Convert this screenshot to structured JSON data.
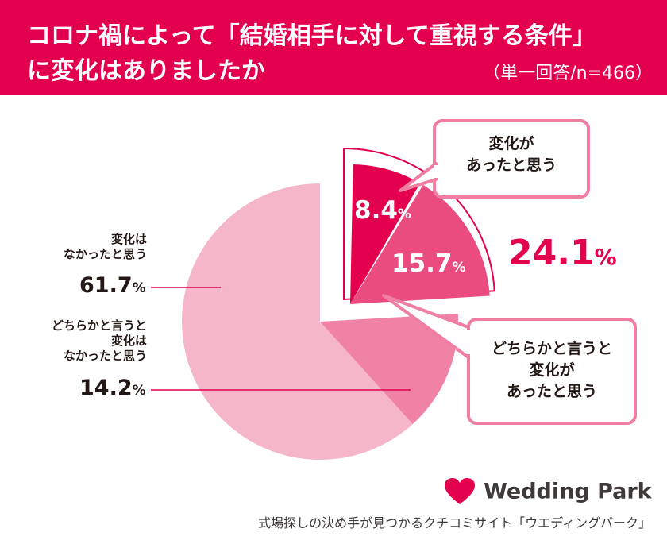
{
  "header": {
    "title_line1": "コロナ禍によって「結婚相手に対して重視する条件」",
    "title_line2": "に変化はありましたか",
    "base_note": "（単一回答/n=466）"
  },
  "chart_data": {
    "type": "pie",
    "unit": "%",
    "slices": [
      {
        "label": "変化はなかったと思う",
        "value": 61.7,
        "color": "#f5b6ca"
      },
      {
        "label": "どちらかと言うと変化はなかったと思う",
        "value": 14.2,
        "color": "#f082a6"
      },
      {
        "label": "どちらかと言うと変化があったと思う",
        "value": 15.7,
        "color": "#ea4c80"
      },
      {
        "label": "変化があったと思う",
        "value": 8.4,
        "color": "#e3004f"
      }
    ],
    "combined_total": {
      "value": 24.1,
      "text": "24.1"
    }
  },
  "labels": {
    "no_change": {
      "line1": "変化は",
      "line2": "なかったと思う",
      "pct": "61.7"
    },
    "rather_no_change": {
      "line1": "どちらかと言うと",
      "line2": "変化は",
      "line3": "なかったと思う",
      "pct": "14.2"
    },
    "changed": {
      "pct": "8.4"
    },
    "rather_changed": {
      "pct": "15.7"
    },
    "percent_sign": "%"
  },
  "bubbles": {
    "changed": {
      "line1": "変化が",
      "line2": "あったと思う"
    },
    "rather_changed": {
      "line1": "どちらかと言うと",
      "line2": "変化が",
      "line3": "あったと思う"
    }
  },
  "footer": {
    "brand": "Wedding Park",
    "tagline": "式場探しの決め手が見つかるクチコミサイト「ウエディングパーク」"
  },
  "colors": {
    "accent": "#e3004f",
    "bubble_border": "#f07ea0",
    "leader_line": "#e3004f"
  }
}
